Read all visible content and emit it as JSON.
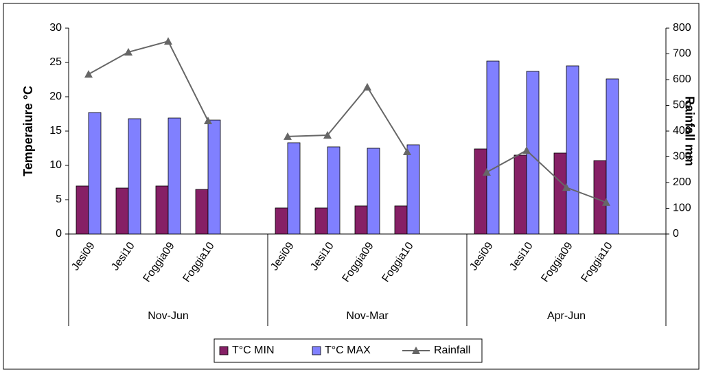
{
  "chart_data": {
    "type": "bar_line",
    "categories": [
      "Jesi09",
      "Jesi10",
      "Foggia09",
      "Foggia10",
      null,
      "Jesi09",
      "Jesi10",
      "Foggia09",
      "Foggia10",
      null,
      "Jesi09",
      "Jesi10",
      "Foggia09",
      "Foggia10",
      null
    ],
    "groups": [
      "Nov-Jun",
      "Nov-Mar",
      "Apr-Jun"
    ],
    "y_label": "Temperaiure °C",
    "y2_label": "Rainfall mm",
    "series": [
      {
        "name": "T°C MIN",
        "type": "bar",
        "color": "#862066",
        "values": [
          7.0,
          6.7,
          7.0,
          6.5,
          null,
          3.8,
          3.8,
          4.1,
          4.1,
          null,
          12.4,
          11.5,
          11.8,
          10.7,
          null
        ]
      },
      {
        "name": "T°C MAX",
        "type": "bar",
        "color": "#8080ff",
        "values": [
          17.7,
          16.8,
          16.9,
          16.6,
          null,
          13.3,
          12.7,
          12.5,
          13.0,
          null,
          25.2,
          23.7,
          24.5,
          22.6,
          null
        ]
      },
      {
        "name": "Rainfall",
        "type": "line",
        "axis": "y2",
        "color": "#666666",
        "values": [
          621,
          707,
          749,
          440,
          null,
          379,
          384,
          571,
          320,
          null,
          240,
          325,
          181,
          123,
          null
        ]
      }
    ],
    "ylim": [
      0,
      30
    ],
    "yticks": [
      0,
      5,
      10,
      15,
      20,
      25,
      30
    ],
    "y2lim": [
      0,
      800
    ],
    "y2ticks": [
      0,
      100,
      200,
      300,
      400,
      500,
      600,
      700,
      800
    ],
    "legend": "bottom"
  }
}
